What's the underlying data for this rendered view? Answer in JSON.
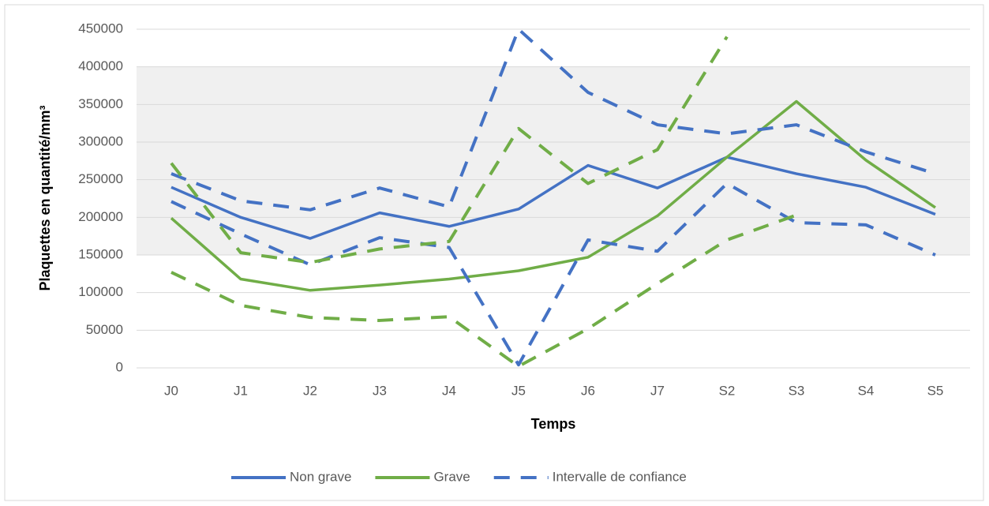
{
  "chart_data": {
    "type": "line",
    "x_label": "Temps",
    "y_label": "Plaquettes en quantité/mm³",
    "categories": [
      "J0",
      "J1",
      "J2",
      "J3",
      "J4",
      "J5",
      "J6",
      "J7",
      "S2",
      "S3",
      "S4",
      "S5"
    ],
    "ylim": [
      0,
      450000
    ],
    "yticks": [
      0,
      50000,
      100000,
      150000,
      200000,
      250000,
      300000,
      350000,
      400000,
      450000
    ],
    "grid": true,
    "shaded_band": [
      150000,
      400000
    ],
    "legend": "bottom",
    "series": [
      {
        "name": "Non grave",
        "color": "#4472c4",
        "values": [
          240000,
          200000,
          172000,
          206000,
          188000,
          211000,
          269000,
          239000,
          280000,
          258000,
          240000,
          204000
        ]
      },
      {
        "name": "Grave",
        "color": "#70ad47",
        "values": [
          199000,
          118000,
          103000,
          110000,
          118000,
          129000,
          147000,
          202000,
          280000,
          354000,
          276000,
          213000
        ]
      },
      {
        "name": "Intervalle de confiance",
        "color": "#4472c4",
        "dashed": true,
        "values": [
          258000,
          222000,
          210000,
          239000,
          214000,
          450000,
          366000,
          323000,
          311000,
          323000,
          287000,
          258000
        ]
      },
      {
        "color": "#4472c4",
        "dashed": true,
        "values": [
          221000,
          178000,
          137000,
          173000,
          160000,
          4000,
          170000,
          155000,
          245000,
          193000,
          190000,
          150000
        ]
      },
      {
        "color": "#70ad47",
        "dashed": true,
        "values": [
          272000,
          153000,
          140000,
          158000,
          168000,
          318000,
          245000,
          290000,
          440000,
          null,
          null,
          null
        ]
      },
      {
        "color": "#70ad47",
        "dashed": true,
        "values": [
          127000,
          83000,
          67000,
          63000,
          68000,
          2000,
          52000,
          112000,
          170000,
          203000,
          null,
          null
        ]
      }
    ]
  }
}
